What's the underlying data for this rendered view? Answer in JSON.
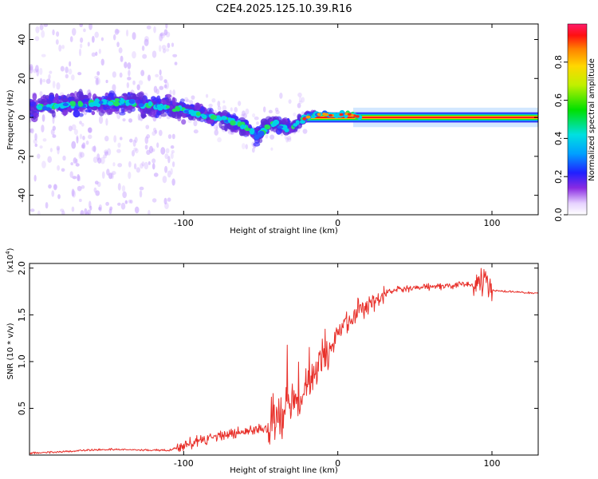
{
  "title": "C2E4.2025.125.10.39.R16",
  "chart_data": [
    {
      "type": "heatmap",
      "xlabel": "Height of straight line (km)",
      "ylabel": "Frequency (Hz)",
      "xlim": [
        -200,
        130
      ],
      "ylim": [
        -50,
        48
      ],
      "x_ticks": [
        -100,
        0,
        100
      ],
      "y_ticks": [
        -40,
        -20,
        0,
        20,
        40
      ],
      "colorbar": {
        "label": "Normalized spectral amplitude",
        "range": [
          0,
          1
        ],
        "ticks": [
          "0.0",
          "0.2",
          "0.4",
          "0.6",
          "0.8"
        ]
      },
      "ridge": {
        "x": [
          -200,
          -180,
          -160,
          -140,
          -120,
          -100,
          -90,
          -80,
          -70,
          -60,
          -52,
          -45,
          -40,
          -35,
          -30,
          -25,
          -20,
          -15,
          -10,
          -5,
          0,
          5,
          10,
          15,
          20,
          60,
          100,
          130
        ],
        "y": [
          5,
          6,
          7,
          8,
          6,
          4,
          2,
          0,
          -2,
          -5,
          -10,
          -4,
          -3,
          -5,
          -6,
          -2,
          0,
          1,
          2,
          1,
          1,
          2,
          1,
          0,
          0,
          0,
          0,
          0
        ]
      }
    },
    {
      "type": "line",
      "xlabel": "Height of straight line (km)",
      "ylabel": "SNR (10 * v/v)",
      "y_multiplier": "(x10",
      "y_multiplier_exp": "4",
      "y_multiplier_close": ")",
      "xlim": [
        -200,
        130
      ],
      "ylim": [
        0,
        2.05
      ],
      "x_ticks": [
        -100,
        0,
        100
      ],
      "y_ticks": [
        "0.5",
        "1.0",
        "1.5",
        "2.0"
      ],
      "color": "#e8302a",
      "trend": {
        "x": [
          -200,
          -150,
          -110,
          -100,
          -80,
          -60,
          -45,
          -35,
          -30,
          -25,
          -20,
          -15,
          -10,
          -5,
          0,
          10,
          20,
          30,
          40,
          60,
          80,
          95,
          100,
          130
        ],
        "y": [
          0.02,
          0.06,
          0.05,
          0.1,
          0.2,
          0.25,
          0.3,
          0.45,
          0.6,
          0.55,
          0.7,
          0.9,
          1.0,
          1.15,
          1.3,
          1.5,
          1.62,
          1.72,
          1.77,
          1.8,
          1.82,
          1.84,
          1.76,
          1.73
        ]
      }
    }
  ]
}
